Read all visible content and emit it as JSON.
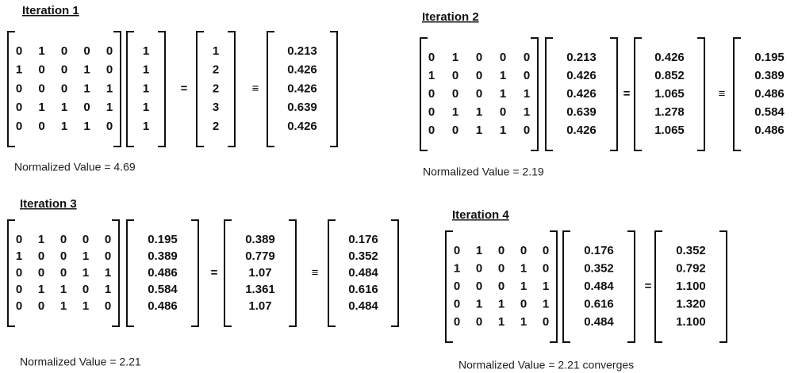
{
  "iterations": [
    {
      "title": "Iteration 1",
      "matrix": [
        [
          "0",
          "1",
          "0",
          "0",
          "0"
        ],
        [
          "1",
          "0",
          "0",
          "1",
          "0"
        ],
        [
          "0",
          "0",
          "0",
          "1",
          "1"
        ],
        [
          "0",
          "1",
          "1",
          "0",
          "1"
        ],
        [
          "0",
          "0",
          "1",
          "1",
          "0"
        ]
      ],
      "vector": [
        "1",
        "1",
        "1",
        "1",
        "1"
      ],
      "equals": "=",
      "product": [
        "1",
        "2",
        "2",
        "3",
        "2"
      ],
      "equiv": "≡",
      "normalized": [
        "0.213",
        "0.426",
        "0.426",
        "0.639",
        "0.426"
      ],
      "note": "Normalized Value = 4.69"
    },
    {
      "title": "Iteration 2",
      "matrix": [
        [
          "0",
          "1",
          "0",
          "0",
          "0"
        ],
        [
          "1",
          "0",
          "0",
          "1",
          "0"
        ],
        [
          "0",
          "0",
          "0",
          "1",
          "1"
        ],
        [
          "0",
          "1",
          "1",
          "0",
          "1"
        ],
        [
          "0",
          "0",
          "1",
          "1",
          "0"
        ]
      ],
      "vector": [
        "0.213",
        "0.426",
        "0.426",
        "0.639",
        "0.426"
      ],
      "equals": "=",
      "product": [
        "0.426",
        "0.852",
        "1.065",
        "1.278",
        "1.065"
      ],
      "equiv": "≡",
      "normalized": [
        "0.195",
        "0.389",
        "0.486",
        "0.584",
        "0.486"
      ],
      "note": "Normalized Value = 2.19"
    },
    {
      "title": "Iteration 3",
      "matrix": [
        [
          "0",
          "1",
          "0",
          "0",
          "0"
        ],
        [
          "1",
          "0",
          "0",
          "1",
          "0"
        ],
        [
          "0",
          "0",
          "0",
          "1",
          "1"
        ],
        [
          "0",
          "1",
          "1",
          "0",
          "1"
        ],
        [
          "0",
          "0",
          "1",
          "1",
          "0"
        ]
      ],
      "vector": [
        "0.195",
        "0.389",
        "0.486",
        "0.584",
        "0.486"
      ],
      "equals": "=",
      "product": [
        "0.389",
        "0.779",
        "1.07",
        "1.361",
        "1.07"
      ],
      "equiv": "≡",
      "normalized": [
        "0.176",
        "0.352",
        "0.484",
        "0.616",
        "0.484"
      ],
      "note": "Normalized Value = 2.21"
    },
    {
      "title": "Iteration 4",
      "matrix": [
        [
          "0",
          "1",
          "0",
          "0",
          "0"
        ],
        [
          "1",
          "0",
          "0",
          "1",
          "0"
        ],
        [
          "0",
          "0",
          "0",
          "1",
          "1"
        ],
        [
          "0",
          "1",
          "1",
          "0",
          "1"
        ],
        [
          "0",
          "0",
          "1",
          "1",
          "0"
        ]
      ],
      "vector": [
        "0.176",
        "0.352",
        "0.484",
        "0.616",
        "0.484"
      ],
      "equals": "=",
      "product": [
        "0.352",
        "0.792",
        "1.100",
        "1.320",
        "1.100"
      ],
      "note": "Normalized Value = 2.21 converges"
    }
  ]
}
